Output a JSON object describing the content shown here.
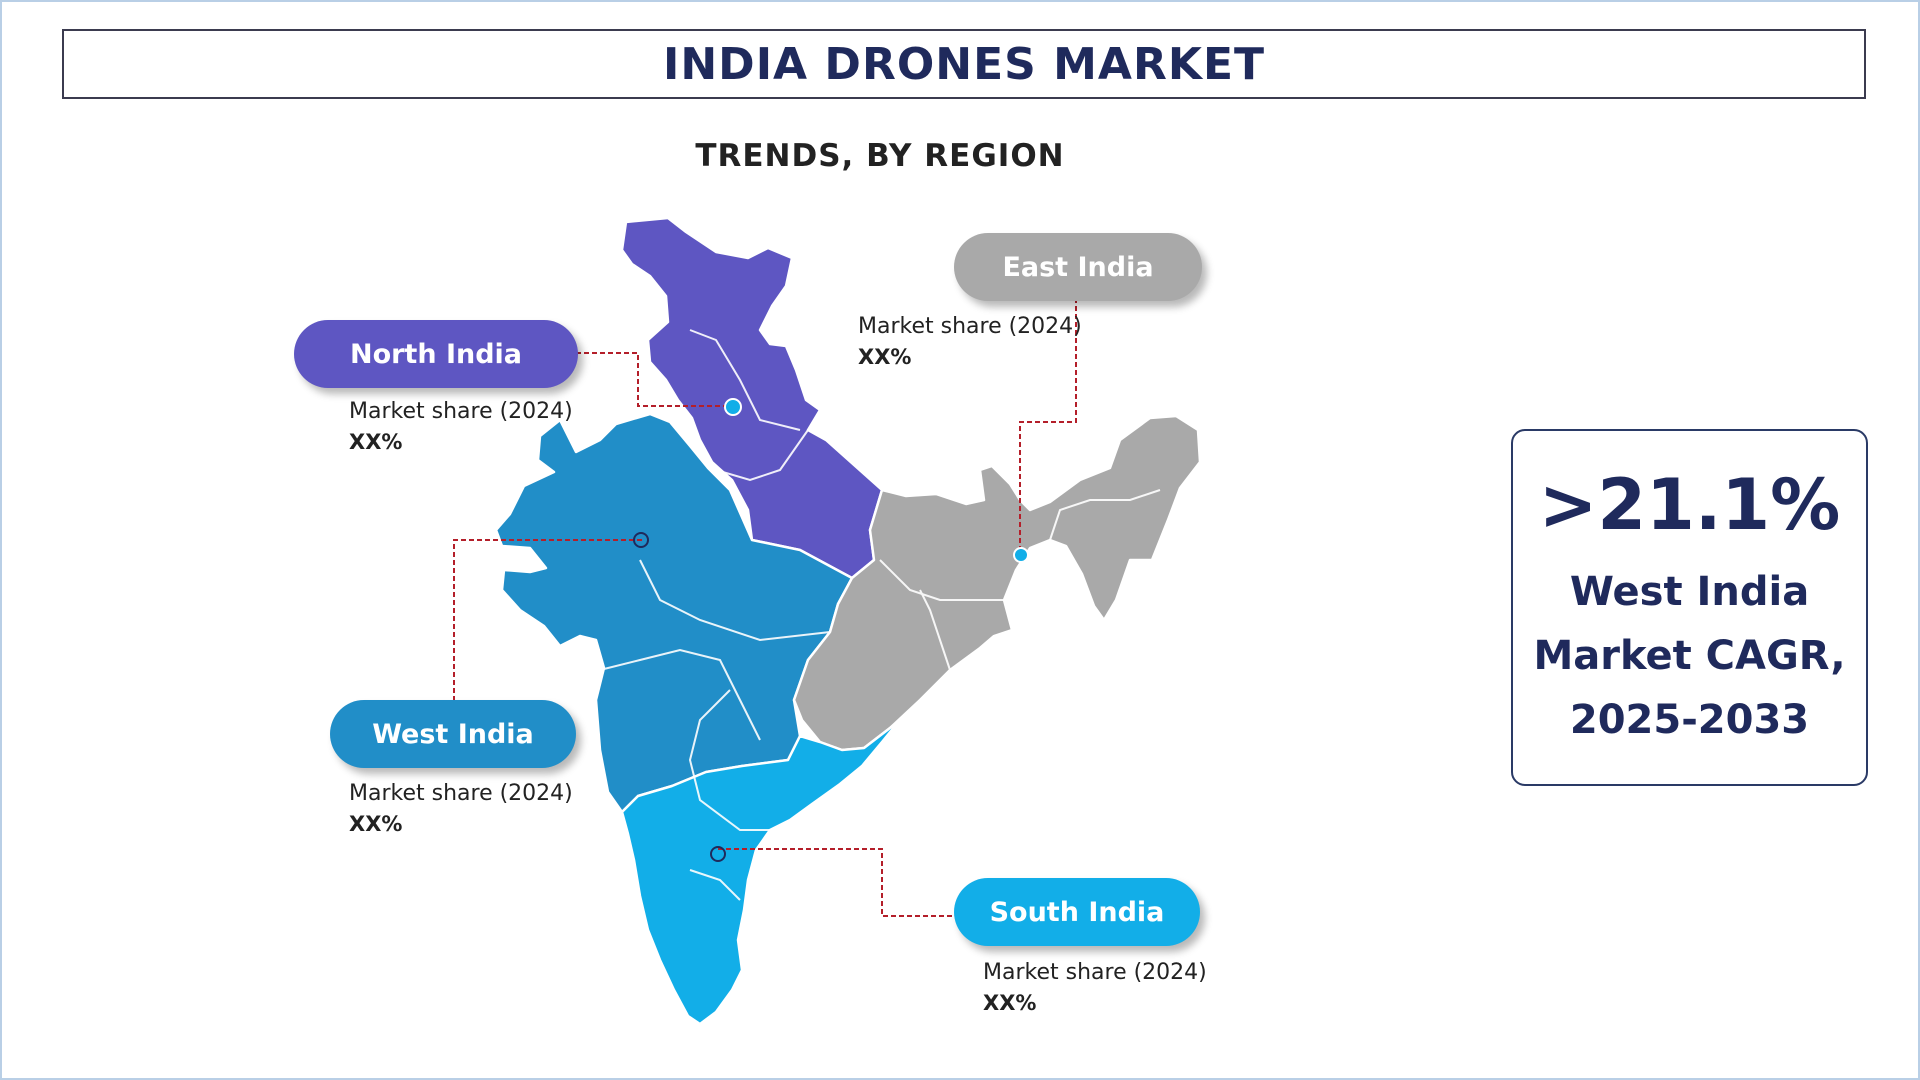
{
  "title": "INDIA DRONES MARKET",
  "subtitle": "TRENDS, BY REGION",
  "regions": {
    "north": {
      "name": "North India",
      "share_label": "Market share (2024)",
      "share_value": "XX%",
      "color": "#5e56c2"
    },
    "east": {
      "name": "East India",
      "share_label": "Market share (2024)",
      "share_value": "XX%",
      "color": "#a9a9a9"
    },
    "west": {
      "name": "West India",
      "share_label": "Market share (2024)",
      "share_value": "XX%",
      "color": "#218ec8"
    },
    "south": {
      "name": "South India",
      "share_label": "Market share (2024)",
      "share_value": "XX%",
      "color": "#12aee8"
    }
  },
  "cagr": {
    "value": ">21.1%",
    "line1": "West India",
    "line2": "Market CAGR,",
    "line3": "2025-2033"
  },
  "colors": {
    "title_text": "#1f2a5c",
    "connector": "#b41f2a",
    "frame": "#b9cfe6"
  }
}
